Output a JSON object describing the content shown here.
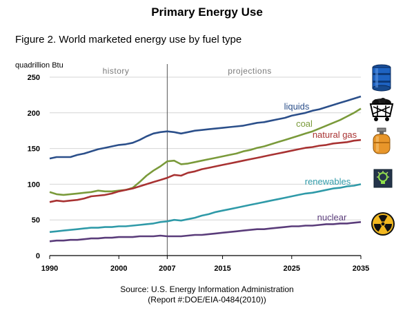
{
  "header": {
    "title": "Primary Energy Use",
    "subtitle": "Figure 2. World marketed energy use by fuel type"
  },
  "footer": {
    "source_line1": "Source: U.S. Energy Information Administration",
    "source_line2": "(Report #:DOE/EIA-0484(2010))"
  },
  "icons": [
    "oil-barrel-icon",
    "coal-cart-icon",
    "gas-cylinder-icon",
    "light-bulb-icon",
    "radiation-icon"
  ],
  "chart_data": {
    "type": "line",
    "title": "Primary Energy Use",
    "subtitle": "Figure 2. World marketed energy use by fuel type",
    "ylabel": "quadrillion Btu",
    "xlim": [
      1990,
      2035
    ],
    "ylim": [
      0,
      250
    ],
    "x_ticks": [
      1990,
      2000,
      2007,
      2015,
      2025,
      2035
    ],
    "y_ticks": [
      0,
      50,
      100,
      150,
      200,
      250
    ],
    "grid": true,
    "annotations": {
      "divider_year": 2007,
      "history_label": "history",
      "projections_label": "projections"
    },
    "series": [
      {
        "name": "liquids",
        "color": "#2b4f8a",
        "points": [
          [
            1990,
            136
          ],
          [
            1991,
            138
          ],
          [
            1992,
            138
          ],
          [
            1993,
            138
          ],
          [
            1994,
            141
          ],
          [
            1995,
            143
          ],
          [
            1996,
            146
          ],
          [
            1997,
            149
          ],
          [
            1998,
            151
          ],
          [
            1999,
            153
          ],
          [
            2000,
            155
          ],
          [
            2001,
            156
          ],
          [
            2002,
            158
          ],
          [
            2003,
            162
          ],
          [
            2004,
            167
          ],
          [
            2005,
            171
          ],
          [
            2006,
            173
          ],
          [
            2007,
            174
          ],
          [
            2008,
            173
          ],
          [
            2009,
            171
          ],
          [
            2010,
            173
          ],
          [
            2011,
            175
          ],
          [
            2012,
            176
          ],
          [
            2013,
            177
          ],
          [
            2014,
            178
          ],
          [
            2015,
            179
          ],
          [
            2016,
            180
          ],
          [
            2017,
            181
          ],
          [
            2018,
            182
          ],
          [
            2019,
            184
          ],
          [
            2020,
            186
          ],
          [
            2021,
            187
          ],
          [
            2022,
            189
          ],
          [
            2023,
            191
          ],
          [
            2024,
            193
          ],
          [
            2025,
            196
          ],
          [
            2026,
            198
          ],
          [
            2027,
            200
          ],
          [
            2028,
            203
          ],
          [
            2029,
            205
          ],
          [
            2030,
            208
          ],
          [
            2031,
            211
          ],
          [
            2032,
            214
          ],
          [
            2033,
            217
          ],
          [
            2034,
            220
          ],
          [
            2035,
            223
          ]
        ]
      },
      {
        "name": "coal",
        "color": "#7a9a3a",
        "points": [
          [
            1990,
            89
          ],
          [
            1991,
            86
          ],
          [
            1992,
            85
          ],
          [
            1993,
            86
          ],
          [
            1994,
            87
          ],
          [
            1995,
            88
          ],
          [
            1996,
            89
          ],
          [
            1997,
            91
          ],
          [
            1998,
            90
          ],
          [
            1999,
            90
          ],
          [
            2000,
            91
          ],
          [
            2001,
            92
          ],
          [
            2002,
            95
          ],
          [
            2003,
            103
          ],
          [
            2004,
            112
          ],
          [
            2005,
            119
          ],
          [
            2006,
            125
          ],
          [
            2007,
            132
          ],
          [
            2008,
            133
          ],
          [
            2009,
            128
          ],
          [
            2010,
            129
          ],
          [
            2011,
            131
          ],
          [
            2012,
            133
          ],
          [
            2013,
            135
          ],
          [
            2014,
            137
          ],
          [
            2015,
            139
          ],
          [
            2016,
            141
          ],
          [
            2017,
            143
          ],
          [
            2018,
            146
          ],
          [
            2019,
            148
          ],
          [
            2020,
            151
          ],
          [
            2021,
            153
          ],
          [
            2022,
            156
          ],
          [
            2023,
            159
          ],
          [
            2024,
            162
          ],
          [
            2025,
            165
          ],
          [
            2026,
            168
          ],
          [
            2027,
            171
          ],
          [
            2028,
            174
          ],
          [
            2029,
            178
          ],
          [
            2030,
            182
          ],
          [
            2031,
            186
          ],
          [
            2032,
            190
          ],
          [
            2033,
            195
          ],
          [
            2034,
            200
          ],
          [
            2035,
            206
          ]
        ]
      },
      {
        "name": "natural gas",
        "color": "#a83232",
        "points": [
          [
            1990,
            75
          ],
          [
            1991,
            77
          ],
          [
            1992,
            76
          ],
          [
            1993,
            77
          ],
          [
            1994,
            78
          ],
          [
            1995,
            80
          ],
          [
            1996,
            83
          ],
          [
            1997,
            84
          ],
          [
            1998,
            85
          ],
          [
            1999,
            87
          ],
          [
            2000,
            90
          ],
          [
            2001,
            92
          ],
          [
            2002,
            94
          ],
          [
            2003,
            97
          ],
          [
            2004,
            100
          ],
          [
            2005,
            103
          ],
          [
            2006,
            106
          ],
          [
            2007,
            109
          ],
          [
            2008,
            113
          ],
          [
            2009,
            112
          ],
          [
            2010,
            116
          ],
          [
            2011,
            118
          ],
          [
            2012,
            121
          ],
          [
            2013,
            123
          ],
          [
            2014,
            125
          ],
          [
            2015,
            127
          ],
          [
            2016,
            129
          ],
          [
            2017,
            131
          ],
          [
            2018,
            133
          ],
          [
            2019,
            135
          ],
          [
            2020,
            137
          ],
          [
            2021,
            139
          ],
          [
            2022,
            141
          ],
          [
            2023,
            143
          ],
          [
            2024,
            145
          ],
          [
            2025,
            147
          ],
          [
            2026,
            149
          ],
          [
            2027,
            151
          ],
          [
            2028,
            152
          ],
          [
            2029,
            154
          ],
          [
            2030,
            155
          ],
          [
            2031,
            157
          ],
          [
            2032,
            158
          ],
          [
            2033,
            159
          ],
          [
            2034,
            161
          ],
          [
            2035,
            162
          ]
        ]
      },
      {
        "name": "renewables",
        "color": "#2f9aa8",
        "points": [
          [
            1990,
            33
          ],
          [
            1991,
            34
          ],
          [
            1992,
            35
          ],
          [
            1993,
            36
          ],
          [
            1994,
            37
          ],
          [
            1995,
            38
          ],
          [
            1996,
            39
          ],
          [
            1997,
            39
          ],
          [
            1998,
            40
          ],
          [
            1999,
            40
          ],
          [
            2000,
            41
          ],
          [
            2001,
            41
          ],
          [
            2002,
            42
          ],
          [
            2003,
            43
          ],
          [
            2004,
            44
          ],
          [
            2005,
            45
          ],
          [
            2006,
            47
          ],
          [
            2007,
            48
          ],
          [
            2008,
            50
          ],
          [
            2009,
            49
          ],
          [
            2010,
            51
          ],
          [
            2011,
            53
          ],
          [
            2012,
            56
          ],
          [
            2013,
            58
          ],
          [
            2014,
            61
          ],
          [
            2015,
            63
          ],
          [
            2016,
            65
          ],
          [
            2017,
            67
          ],
          [
            2018,
            69
          ],
          [
            2019,
            71
          ],
          [
            2020,
            73
          ],
          [
            2021,
            75
          ],
          [
            2022,
            77
          ],
          [
            2023,
            79
          ],
          [
            2024,
            81
          ],
          [
            2025,
            83
          ],
          [
            2026,
            85
          ],
          [
            2027,
            87
          ],
          [
            2028,
            88
          ],
          [
            2029,
            90
          ],
          [
            2030,
            92
          ],
          [
            2031,
            94
          ],
          [
            2032,
            95
          ],
          [
            2033,
            97
          ],
          [
            2034,
            98
          ],
          [
            2035,
            100
          ]
        ]
      },
      {
        "name": "nuclear",
        "color": "#5a3c7a",
        "points": [
          [
            1990,
            20
          ],
          [
            1991,
            21
          ],
          [
            1992,
            21
          ],
          [
            1993,
            22
          ],
          [
            1994,
            22
          ],
          [
            1995,
            23
          ],
          [
            1996,
            24
          ],
          [
            1997,
            24
          ],
          [
            1998,
            25
          ],
          [
            1999,
            25
          ],
          [
            2000,
            26
          ],
          [
            2001,
            26
          ],
          [
            2002,
            26
          ],
          [
            2003,
            27
          ],
          [
            2004,
            27
          ],
          [
            2005,
            27
          ],
          [
            2006,
            28
          ],
          [
            2007,
            27
          ],
          [
            2008,
            27
          ],
          [
            2009,
            27
          ],
          [
            2010,
            28
          ],
          [
            2011,
            29
          ],
          [
            2012,
            29
          ],
          [
            2013,
            30
          ],
          [
            2014,
            31
          ],
          [
            2015,
            32
          ],
          [
            2016,
            33
          ],
          [
            2017,
            34
          ],
          [
            2018,
            35
          ],
          [
            2019,
            36
          ],
          [
            2020,
            37
          ],
          [
            2021,
            37
          ],
          [
            2022,
            38
          ],
          [
            2023,
            39
          ],
          [
            2024,
            40
          ],
          [
            2025,
            41
          ],
          [
            2026,
            41
          ],
          [
            2027,
            42
          ],
          [
            2028,
            42
          ],
          [
            2029,
            43
          ],
          [
            2030,
            44
          ],
          [
            2031,
            44
          ],
          [
            2032,
            45
          ],
          [
            2033,
            45
          ],
          [
            2034,
            46
          ],
          [
            2035,
            47
          ]
        ]
      }
    ]
  }
}
